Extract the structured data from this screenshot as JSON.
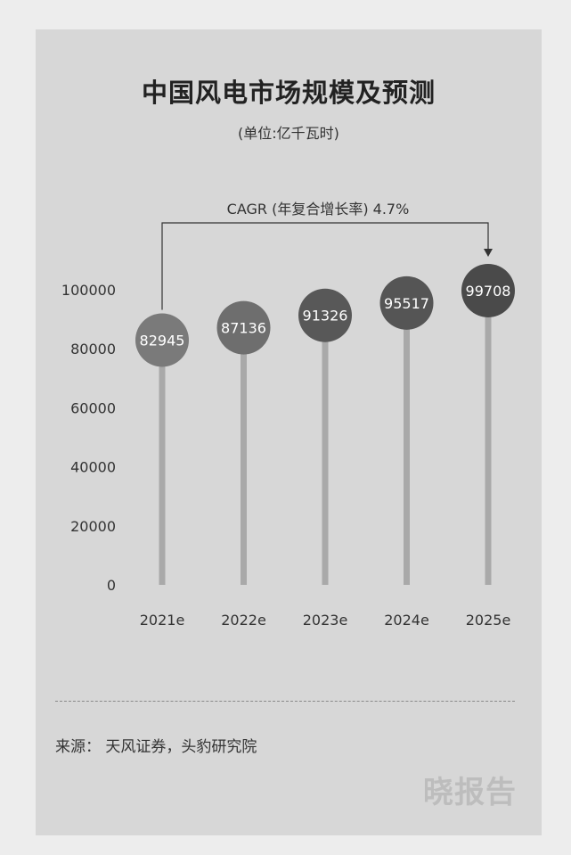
{
  "title": "中国风电市场规模及预测",
  "unit": "(单位:亿千瓦时)",
  "source": "来源： 天风证券，头豹研究院",
  "watermark": "晓报告",
  "chart_data": {
    "type": "bar",
    "style": "lollipop",
    "title": "中国风电市场规模及预测",
    "subtitle": "(单位:亿千瓦时)",
    "categories": [
      "2021e",
      "2022e",
      "2023e",
      "2024e",
      "2025e"
    ],
    "values": [
      82945,
      87136,
      91326,
      95517,
      99708
    ],
    "data_labels": [
      "82945",
      "87136",
      "91326",
      "95517",
      "99708"
    ],
    "y_ticks": [
      "0",
      "20000",
      "40000",
      "60000",
      "80000",
      "100000"
    ],
    "ylim": [
      0,
      100000
    ],
    "grid": false,
    "annotation": "CAGR (年复合增长率) 4.7%",
    "colors": {
      "stick": "#a9a9a9",
      "circles": [
        "#7a7a7a",
        "#6e6e6e",
        "#585858",
        "#555555",
        "#4a4a4a"
      ],
      "label": "#ffffff",
      "axis_text": "#333333"
    }
  }
}
